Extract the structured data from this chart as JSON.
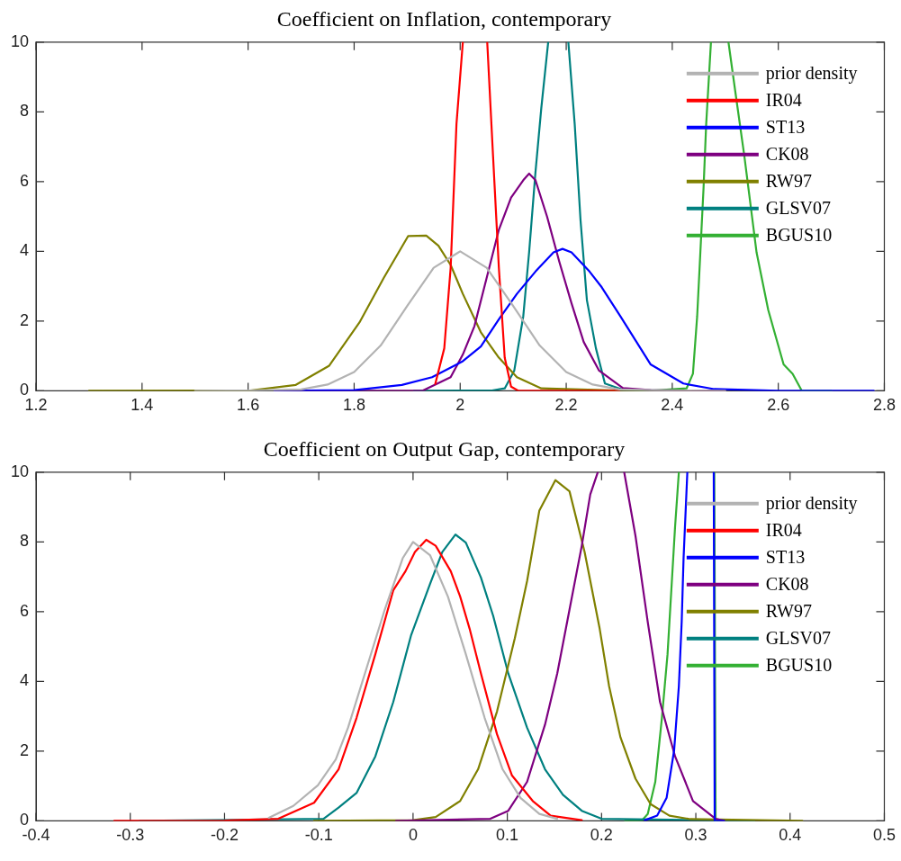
{
  "chart_data": [
    {
      "type": "line",
      "title": "Coefficient on Inflation, contemporary",
      "xlim": [
        1.2,
        2.8
      ],
      "xticks": [
        1.2,
        1.4,
        1.6,
        1.8,
        2,
        2.2,
        2.4,
        2.6,
        2.8
      ],
      "ylim": [
        0,
        10
      ],
      "yticks": [
        0,
        2,
        4,
        6,
        8,
        10
      ],
      "grid": false,
      "legend": "top right",
      "marker": "none",
      "line_style": "solid",
      "series": [
        {
          "name": "prior density",
          "color": "#b3b3b3",
          "x": [
            1.5,
            1.6,
            1.7,
            1.75,
            1.8,
            1.85,
            1.9,
            1.95,
            2,
            2.05,
            2.1,
            2.15,
            2.2,
            2.25,
            2.3,
            2.4,
            2.5
          ],
          "values": [
            0,
            0.01,
            0.04,
            0.18,
            0.54,
            1.3,
            2.43,
            3.53,
            4,
            3.53,
            2.43,
            1.3,
            0.54,
            0.18,
            0.04,
            0.01,
            0
          ]
        },
        {
          "name": "IR04",
          "color": "#ff0000",
          "x": [
            1.953,
            1.97,
            1.982,
            1.993,
            2.005,
            2.03,
            2.051,
            2.062,
            2.073,
            2.084,
            2.096,
            2.11,
            2.3
          ],
          "values": [
            0.2,
            1.22,
            3.52,
            7.65,
            10,
            null,
            10,
            6.73,
            3.52,
            0.95,
            0.12,
            0,
            0
          ]
        },
        {
          "name": "ST13",
          "color": "#0000ff",
          "x": [
            1.65,
            1.8,
            1.89,
            1.947,
            2.005,
            2.039,
            2.073,
            2.107,
            2.142,
            2.176,
            2.193,
            2.21,
            2.244,
            2.267,
            2.302,
            2.359,
            2.421,
            2.479,
            2.6,
            2.78
          ],
          "values": [
            0,
            0.02,
            0.17,
            0.39,
            0.85,
            1.27,
            2.05,
            2.78,
            3.42,
            3.97,
            4.07,
            3.97,
            3.42,
            2.97,
            2.14,
            0.76,
            0.21,
            0.05,
            0,
            0
          ]
        },
        {
          "name": "CK08",
          "color": "#7e0080",
          "x": [
            1.65,
            1.93,
            1.982,
            2.005,
            2.027,
            2.05,
            2.073,
            2.096,
            2.119,
            2.13,
            2.142,
            2.164,
            2.187,
            2.21,
            2.233,
            2.262,
            2.307,
            2.36,
            2.5
          ],
          "values": [
            0,
            0.01,
            0.39,
            1.04,
            1.86,
            3.24,
            4.62,
            5.54,
            6.04,
            6.23,
            6.04,
            4.99,
            3.7,
            2.51,
            1.4,
            0.58,
            0.08,
            0.02,
            0
          ]
        },
        {
          "name": "RW97",
          "color": "#808000",
          "x": [
            1.3,
            1.604,
            1.69,
            1.753,
            1.81,
            1.856,
            1.902,
            1.936,
            1.959,
            1.982,
            2.005,
            2.039,
            2.073,
            2.107,
            2.153,
            2.3,
            2.5
          ],
          "values": [
            0,
            0.01,
            0.17,
            0.72,
            1.96,
            3.24,
            4.44,
            4.45,
            4.16,
            3.61,
            2.78,
            1.68,
            0.95,
            0.39,
            0.07,
            0.01,
            0
          ]
        },
        {
          "name": "GLSV07",
          "color": "#008080",
          "x": [
            1.913,
            2.06,
            2.084,
            2.102,
            2.119,
            2.13,
            2.142,
            2.153,
            2.166,
            2.185,
            2.204,
            2.216,
            2.227,
            2.239,
            2.256,
            2.273,
            2.307,
            2.4
          ],
          "values": [
            0,
            0.01,
            0.07,
            0.58,
            2.14,
            3.97,
            6.27,
            8.11,
            10,
            null,
            10,
            7.65,
            4.89,
            2.6,
            1.22,
            0.21,
            0.03,
            0
          ]
        },
        {
          "name": "BGUS10",
          "color": "#33b033",
          "x": [
            2.358,
            2.427,
            2.439,
            2.447,
            2.453,
            2.459,
            2.464,
            2.473,
            2.49,
            2.506,
            2.519,
            2.536,
            2.559,
            2.581,
            2.61,
            2.627,
            2.644,
            2.7
          ],
          "values": [
            0,
            0.07,
            0.49,
            2.14,
            3.97,
            5.81,
            7.65,
            10,
            null,
            10,
            8.57,
            6.73,
            3.97,
            2.32,
            0.76,
            0.49,
            0.01,
            0
          ]
        }
      ]
    },
    {
      "type": "line",
      "title": "Coefficient on Output Gap, contemporary",
      "xlim": [
        -0.4,
        0.5
      ],
      "xticks": [
        -0.4,
        -0.3,
        -0.2,
        -0.1,
        0,
        0.1,
        0.2,
        0.3,
        0.4,
        0.5
      ],
      "ylim": [
        0,
        10
      ],
      "yticks": [
        0,
        2,
        4,
        6,
        8,
        10
      ],
      "grid": false,
      "legend": "top right",
      "marker": "none",
      "line_style": "solid",
      "series": [
        {
          "name": "prior density",
          "color": "#b3b3b3",
          "x": [
            -0.153,
            -0.127,
            -0.101,
            -0.082,
            -0.069,
            -0.05,
            -0.03,
            -0.011,
            0,
            0.018,
            0.037,
            0.056,
            0.076,
            0.095,
            0.114,
            0.134,
            0.153
          ],
          "values": [
            0.09,
            0.43,
            1.02,
            1.76,
            2.67,
            4.32,
            6.06,
            7.53,
            8,
            7.62,
            6.43,
            4.78,
            2.95,
            1.48,
            0.66,
            0.2,
            0.06
          ]
        },
        {
          "name": "IR04",
          "color": "#ff0000",
          "x": [
            -0.317,
            -0.2,
            -0.143,
            -0.105,
            -0.079,
            -0.06,
            -0.04,
            -0.021,
            -0.008,
            0.002,
            0.014,
            0.024,
            0.04,
            0.05,
            0.06,
            0.072,
            0.089,
            0.105,
            0.127,
            0.146,
            0.179
          ],
          "values": [
            0,
            0.01,
            0.06,
            0.52,
            1.48,
            2.95,
            4.78,
            6.61,
            7.16,
            7.71,
            8.06,
            7.89,
            7.16,
            6.43,
            5.51,
            4.23,
            2.49,
            1.3,
            0.57,
            0.15,
            0.02
          ]
        },
        {
          "name": "ST13",
          "color": "#0000ff",
          "x": [
            0.246,
            0.259,
            0.269,
            0.277,
            0.282,
            0.285,
            0.287,
            0.291,
            0.305,
            0.319,
            0.32,
            0.33
          ],
          "values": [
            0.02,
            0.15,
            0.66,
            2.03,
            3.86,
            5.7,
            7.53,
            10,
            null,
            10,
            0,
            0
          ]
        },
        {
          "name": "CK08",
          "color": "#7e0080",
          "x": [
            -0.018,
            0.082,
            0.101,
            0.121,
            0.14,
            0.153,
            0.166,
            0.179,
            0.188,
            0.196,
            0.21,
            0.224,
            0.236,
            0.249,
            0.262,
            0.278,
            0.297,
            0.321,
            0.33
          ],
          "values": [
            0,
            0.06,
            0.29,
            1.12,
            2.76,
            4.23,
            6.06,
            7.89,
            9.36,
            10,
            null,
            10,
            8.17,
            5.7,
            3.41,
            1.85,
            0.57,
            0.06,
            0
          ]
        },
        {
          "name": "RW97",
          "color": "#808000",
          "x": [
            -0.105,
            0,
            0.024,
            0.05,
            0.069,
            0.089,
            0.108,
            0.121,
            0.134,
            0.151,
            0.166,
            0.182,
            0.198,
            0.208,
            0.22,
            0.236,
            0.252,
            0.272,
            0.294,
            0.413
          ],
          "values": [
            0,
            0.02,
            0.11,
            0.57,
            1.48,
            3.13,
            5.24,
            6.88,
            8.9,
            9.77,
            9.45,
            7.71,
            5.51,
            3.86,
            2.4,
            1.21,
            0.48,
            0.15,
            0.05,
            0
          ]
        },
        {
          "name": "GLSV07",
          "color": "#008080",
          "x": [
            -0.29,
            -0.095,
            -0.079,
            -0.06,
            -0.04,
            -0.021,
            -0.002,
            0.018,
            0.031,
            0.045,
            0.056,
            0.072,
            0.085,
            0.101,
            0.121,
            0.14,
            0.159,
            0.179,
            0.2,
            0.362
          ],
          "values": [
            0,
            0.06,
            0.38,
            0.8,
            1.85,
            3.41,
            5.33,
            6.79,
            7.71,
            8.21,
            7.98,
            6.98,
            5.88,
            4.23,
            2.67,
            1.48,
            0.75,
            0.29,
            0.06,
            0
          ]
        },
        {
          "name": "BGUS10",
          "color": "#33b033",
          "x": [
            0.225,
            0.243,
            0.249,
            0.257,
            0.264,
            0.27,
            0.274,
            0.278,
            0.282,
            0.3,
            0.3196,
            0.321
          ],
          "values": [
            0,
            0.02,
            0.2,
            1.12,
            2.95,
            4.78,
            6.61,
            8.44,
            10,
            null,
            10,
            0
          ]
        }
      ]
    }
  ]
}
